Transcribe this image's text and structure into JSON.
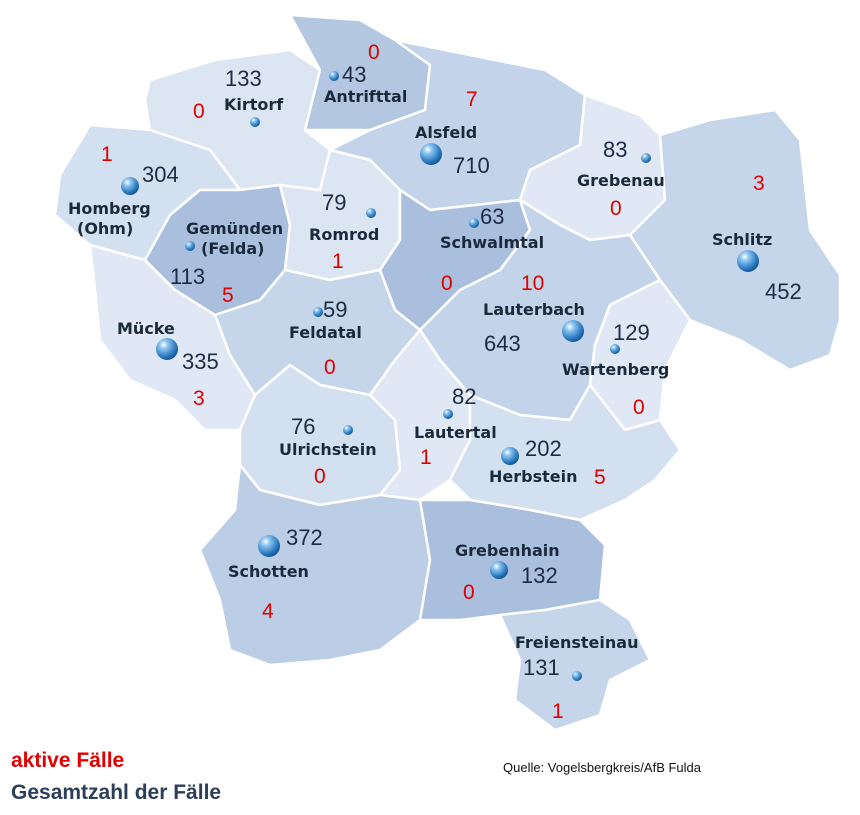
{
  "colors": {
    "light_region": "#dfe8f4",
    "mid_region": "#c5d5ea",
    "dark_region": "#a9bfdd",
    "border": "#ffffff",
    "active_text": "#e00000",
    "total_text": "#1d2b44"
  },
  "municipalities": [
    {
      "id": "kirtorf",
      "name": "Kirtorf",
      "total": "133",
      "active": "0"
    },
    {
      "id": "antrifttal",
      "name": "Antrifttal",
      "total": "43",
      "active": "0"
    },
    {
      "id": "alsfeld",
      "name": "Alsfeld",
      "total": "710",
      "active": "7"
    },
    {
      "id": "grebenau",
      "name": "Grebenau",
      "total": "83",
      "active": "0"
    },
    {
      "id": "homberg",
      "name": "Homberg",
      "name2": "(Ohm)",
      "total": "304",
      "active": "1"
    },
    {
      "id": "gemuenden",
      "name": "Gemünden",
      "name2": "(Felda)",
      "total": "113",
      "active": "5"
    },
    {
      "id": "romrod",
      "name": "Romrod",
      "total": "79",
      "active": "1"
    },
    {
      "id": "schwalmtal",
      "name": "Schwalmtal",
      "total": "63",
      "active": "0"
    },
    {
      "id": "schlitz",
      "name": "Schlitz",
      "total": "452",
      "active": "3"
    },
    {
      "id": "lauterbach",
      "name": "Lauterbach",
      "total": "643",
      "active": "10"
    },
    {
      "id": "muecke",
      "name": "Mücke",
      "total": "335",
      "active": "3"
    },
    {
      "id": "feldatal",
      "name": "Feldatal",
      "total": "59",
      "active": "0"
    },
    {
      "id": "wartenberg",
      "name": "Wartenberg",
      "total": "129",
      "active": "0"
    },
    {
      "id": "ulrichstein",
      "name": "Ulrichstein",
      "total": "76",
      "active": "0"
    },
    {
      "id": "lautertal",
      "name": "Lautertal",
      "total": "82",
      "active": "1"
    },
    {
      "id": "herbstein",
      "name": "Herbstein",
      "total": "202",
      "active": "5"
    },
    {
      "id": "schotten",
      "name": "Schotten",
      "total": "372",
      "active": "4"
    },
    {
      "id": "grebenhain",
      "name": "Grebenhain",
      "total": "132",
      "active": "0"
    },
    {
      "id": "freiensteinau",
      "name": "Freiensteinau",
      "total": "131",
      "active": "1"
    }
  ],
  "legend": {
    "active_label": "aktive Fälle",
    "total_label": "Gesamtzahl der Fälle"
  },
  "source": "Quelle: Vogelsbergkreis/AfB Fulda"
}
